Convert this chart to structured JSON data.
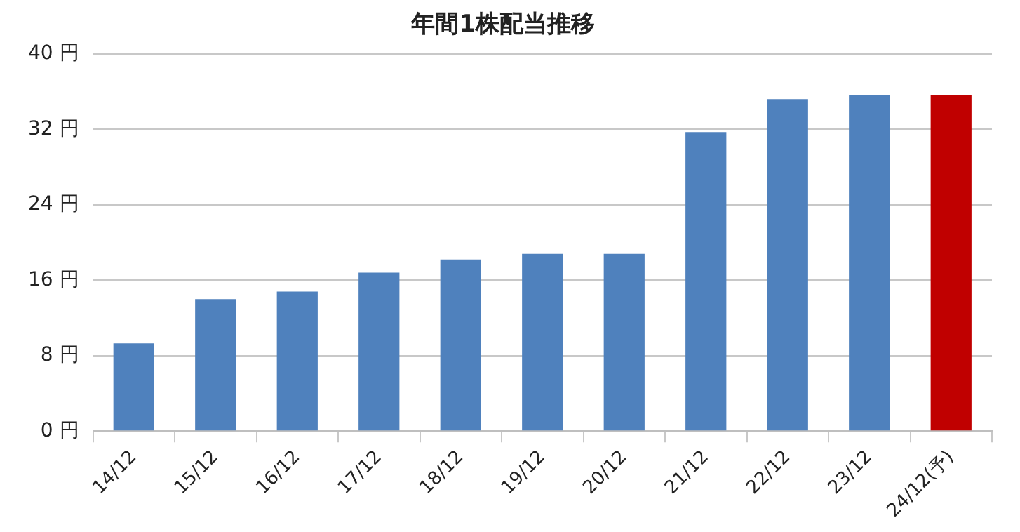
{
  "chart_data": {
    "type": "bar",
    "title": "年間1株配当推移",
    "categories": [
      "14/12",
      "15/12",
      "16/12",
      "17/12",
      "18/12",
      "19/12",
      "20/12",
      "21/12",
      "22/12",
      "23/12",
      "24/12(予)"
    ],
    "values": [
      9.3,
      14,
      14.8,
      16.8,
      18.2,
      18.8,
      18.8,
      31.7,
      35.2,
      35.6,
      35.6
    ],
    "colors": [
      "#4f81bd",
      "#4f81bd",
      "#4f81bd",
      "#4f81bd",
      "#4f81bd",
      "#4f81bd",
      "#4f81bd",
      "#4f81bd",
      "#4f81bd",
      "#4f81bd",
      "#c00000"
    ],
    "ylim": [
      0,
      40
    ],
    "yticks": [
      {
        "value": 0,
        "label": "0 円"
      },
      {
        "value": 8,
        "label": "8 円"
      },
      {
        "value": 16,
        "label": "16 円"
      },
      {
        "value": 24,
        "label": "24 円"
      },
      {
        "value": 32,
        "label": "32 円"
      },
      {
        "value": 40,
        "label": "40 円"
      }
    ],
    "grid": "y",
    "legend": false
  }
}
